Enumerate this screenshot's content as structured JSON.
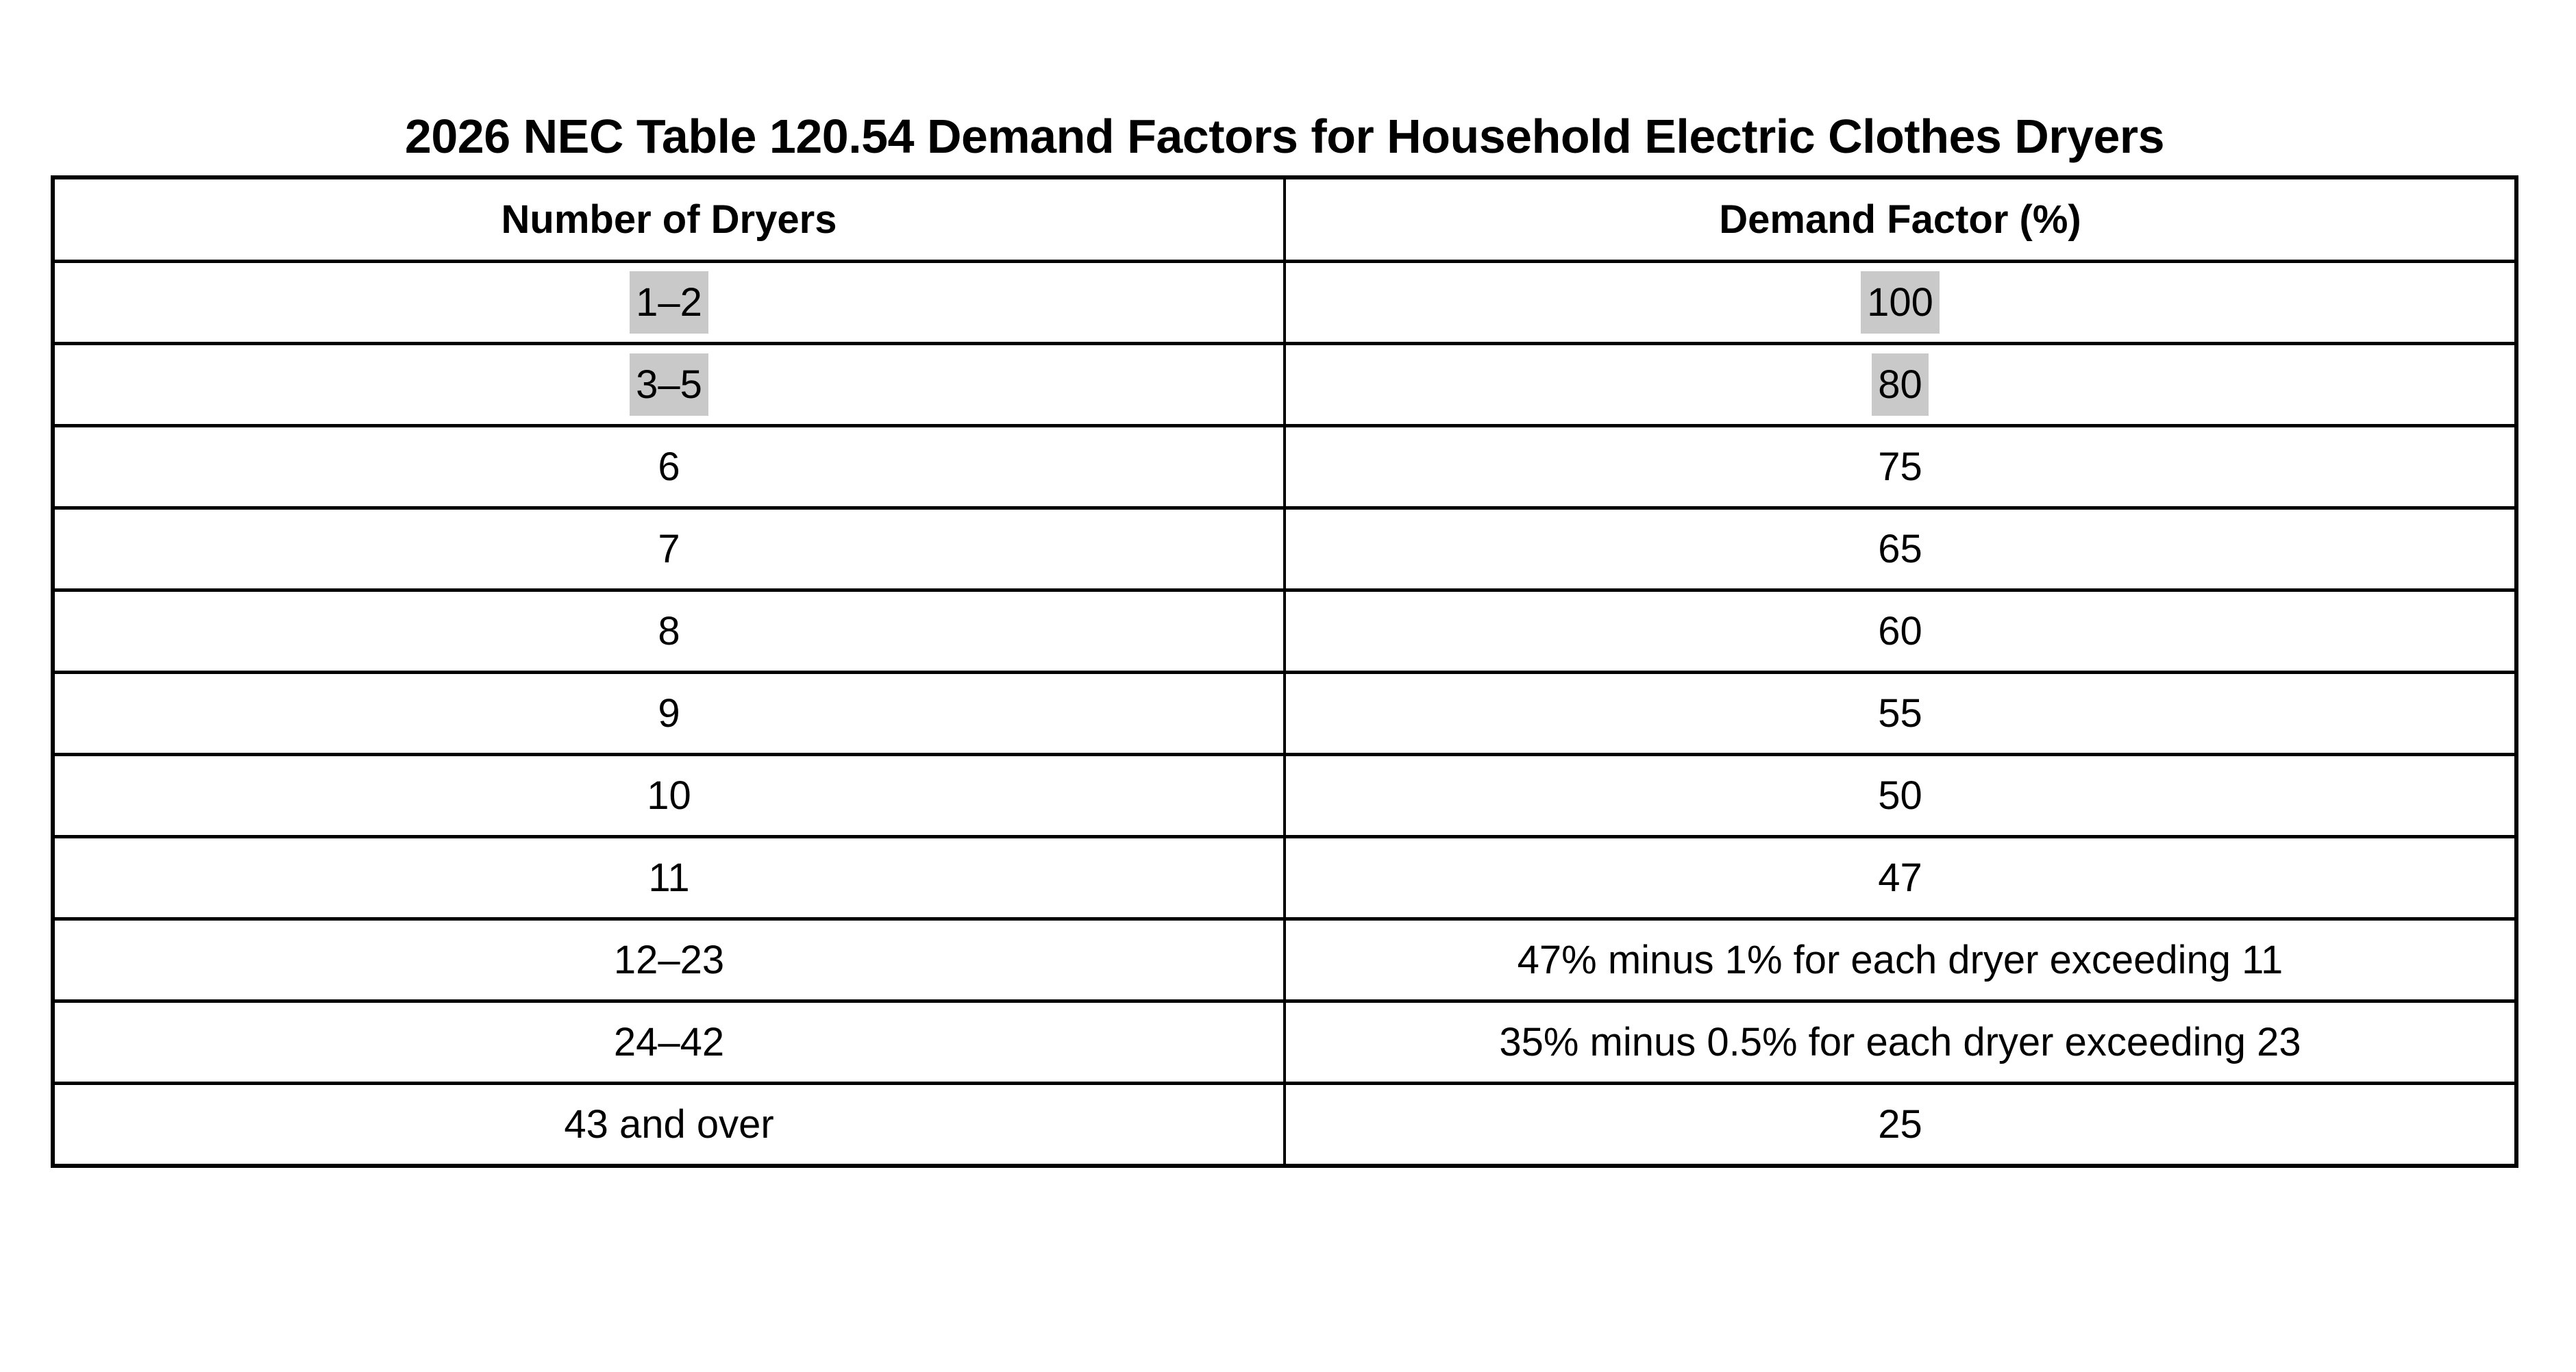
{
  "page": {
    "title": "2026 NEC Table 120.54 Demand Factors for Household Electric Clothes Dryers"
  },
  "table": {
    "columns": [
      "Number of Dryers",
      "Demand Factor (%)"
    ],
    "rows": [
      {
        "dryers": "1–2",
        "factor": "100",
        "highlighted": true
      },
      {
        "dryers": "3–5",
        "factor": "80",
        "highlighted": true
      },
      {
        "dryers": "6",
        "factor": "75",
        "highlighted": false
      },
      {
        "dryers": "7",
        "factor": "65",
        "highlighted": false
      },
      {
        "dryers": "8",
        "factor": "60",
        "highlighted": false
      },
      {
        "dryers": "9",
        "factor": "55",
        "highlighted": false
      },
      {
        "dryers": "10",
        "factor": "50",
        "highlighted": false
      },
      {
        "dryers": "11",
        "factor": "47",
        "highlighted": false
      },
      {
        "dryers": "12–23",
        "factor": "47% minus 1% for each dryer exceeding 11",
        "highlighted": false
      },
      {
        "dryers": "24–42",
        "factor": "35% minus 0.5% for each dryer exceeding 23",
        "highlighted": false
      },
      {
        "dryers": "43 and over",
        "factor": "25",
        "highlighted": false
      }
    ]
  },
  "colors": {
    "background": "#ffffff",
    "text": "#000000",
    "border": "#000000",
    "highlight": "#c9c9c9"
  }
}
